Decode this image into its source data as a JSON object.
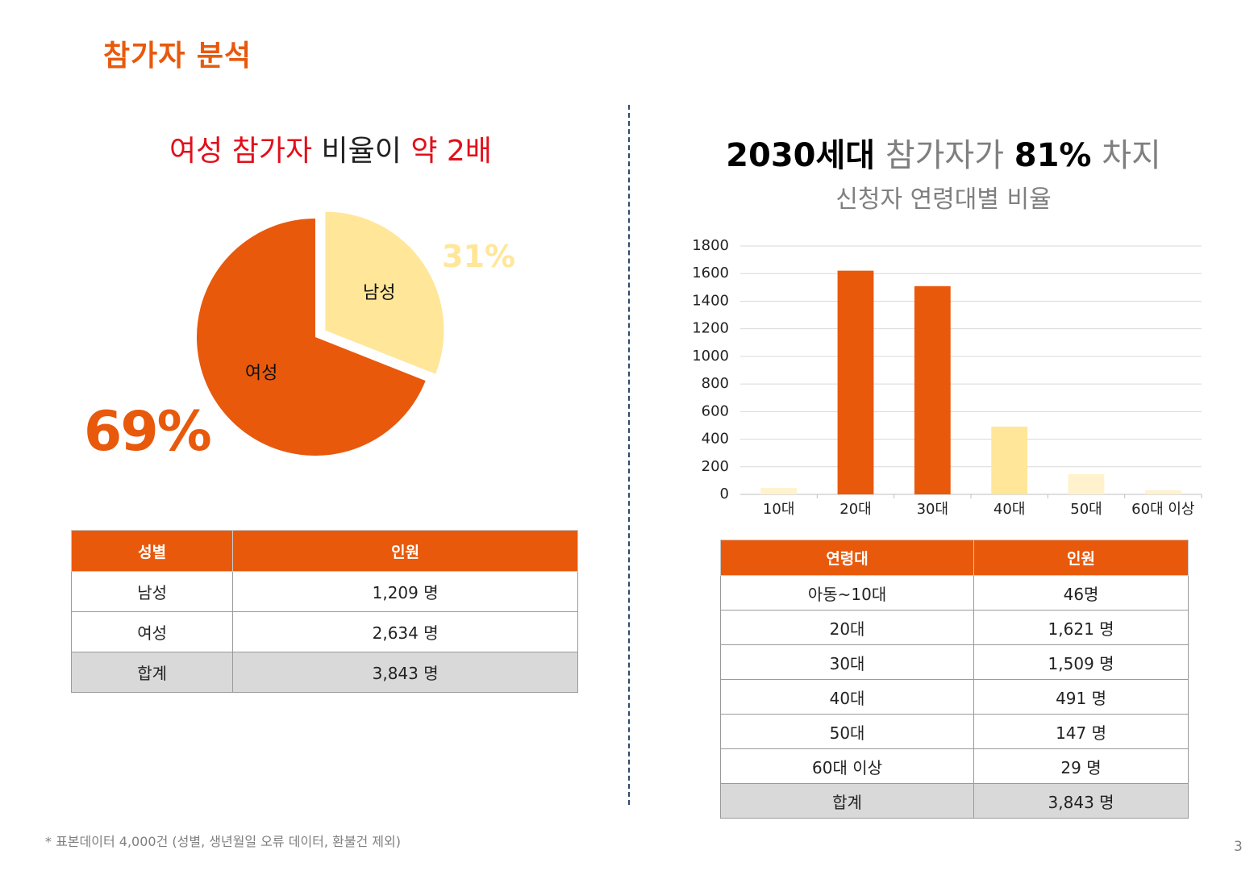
{
  "page_title": "참가자 분석",
  "left": {
    "headline_parts": [
      "여성 참가자",
      " 비율이 ",
      "약 2배"
    ],
    "pie_big_label": "69%",
    "pie_small_label": "31%",
    "table": {
      "headers": [
        "성별",
        "인원"
      ],
      "rows": [
        [
          "남성",
          "1,209 명"
        ],
        [
          "여성",
          "2,634 명"
        ]
      ],
      "total": [
        "합계",
        "3,843 명"
      ]
    }
  },
  "right": {
    "headline_parts": [
      "2030세대",
      " 참가자가 ",
      "81%",
      " 차지"
    ],
    "table": {
      "headers": [
        "연령대",
        "인원"
      ],
      "rows": [
        [
          "아동~10대",
          "46명"
        ],
        [
          "20대",
          "1,621 명"
        ],
        [
          "30대",
          "1,509 명"
        ],
        [
          "40대",
          "491 명"
        ],
        [
          "50대",
          "147 명"
        ],
        [
          "60대 이상",
          "29 명"
        ]
      ],
      "total": [
        "합계",
        "3,843 명"
      ]
    }
  },
  "chart_data": [
    {
      "type": "pie",
      "labels": [
        "여성",
        "남성"
      ],
      "values": [
        69,
        31
      ],
      "colors": [
        "#e8590c",
        "#ffe699"
      ],
      "exploded": "남성"
    },
    {
      "type": "bar",
      "title": "신청자 연령대별 비율",
      "categories": [
        "10대",
        "20대",
        "30대",
        "40대",
        "50대",
        "60대 이상"
      ],
      "values": [
        46,
        1621,
        1509,
        491,
        147,
        29
      ],
      "colors": [
        "#fff2cc",
        "#e8590c",
        "#e8590c",
        "#ffe699",
        "#fff2cc",
        "#fff2cc"
      ],
      "ylim": [
        0,
        1800
      ],
      "yticks": [
        0,
        200,
        400,
        600,
        800,
        1000,
        1200,
        1400,
        1600,
        1800
      ],
      "grid": true
    }
  ],
  "footnote": "* 표본데이터  4,000건 (성별, 생년월일 오류 데이터, 환불건 제외)",
  "page_number": "3"
}
